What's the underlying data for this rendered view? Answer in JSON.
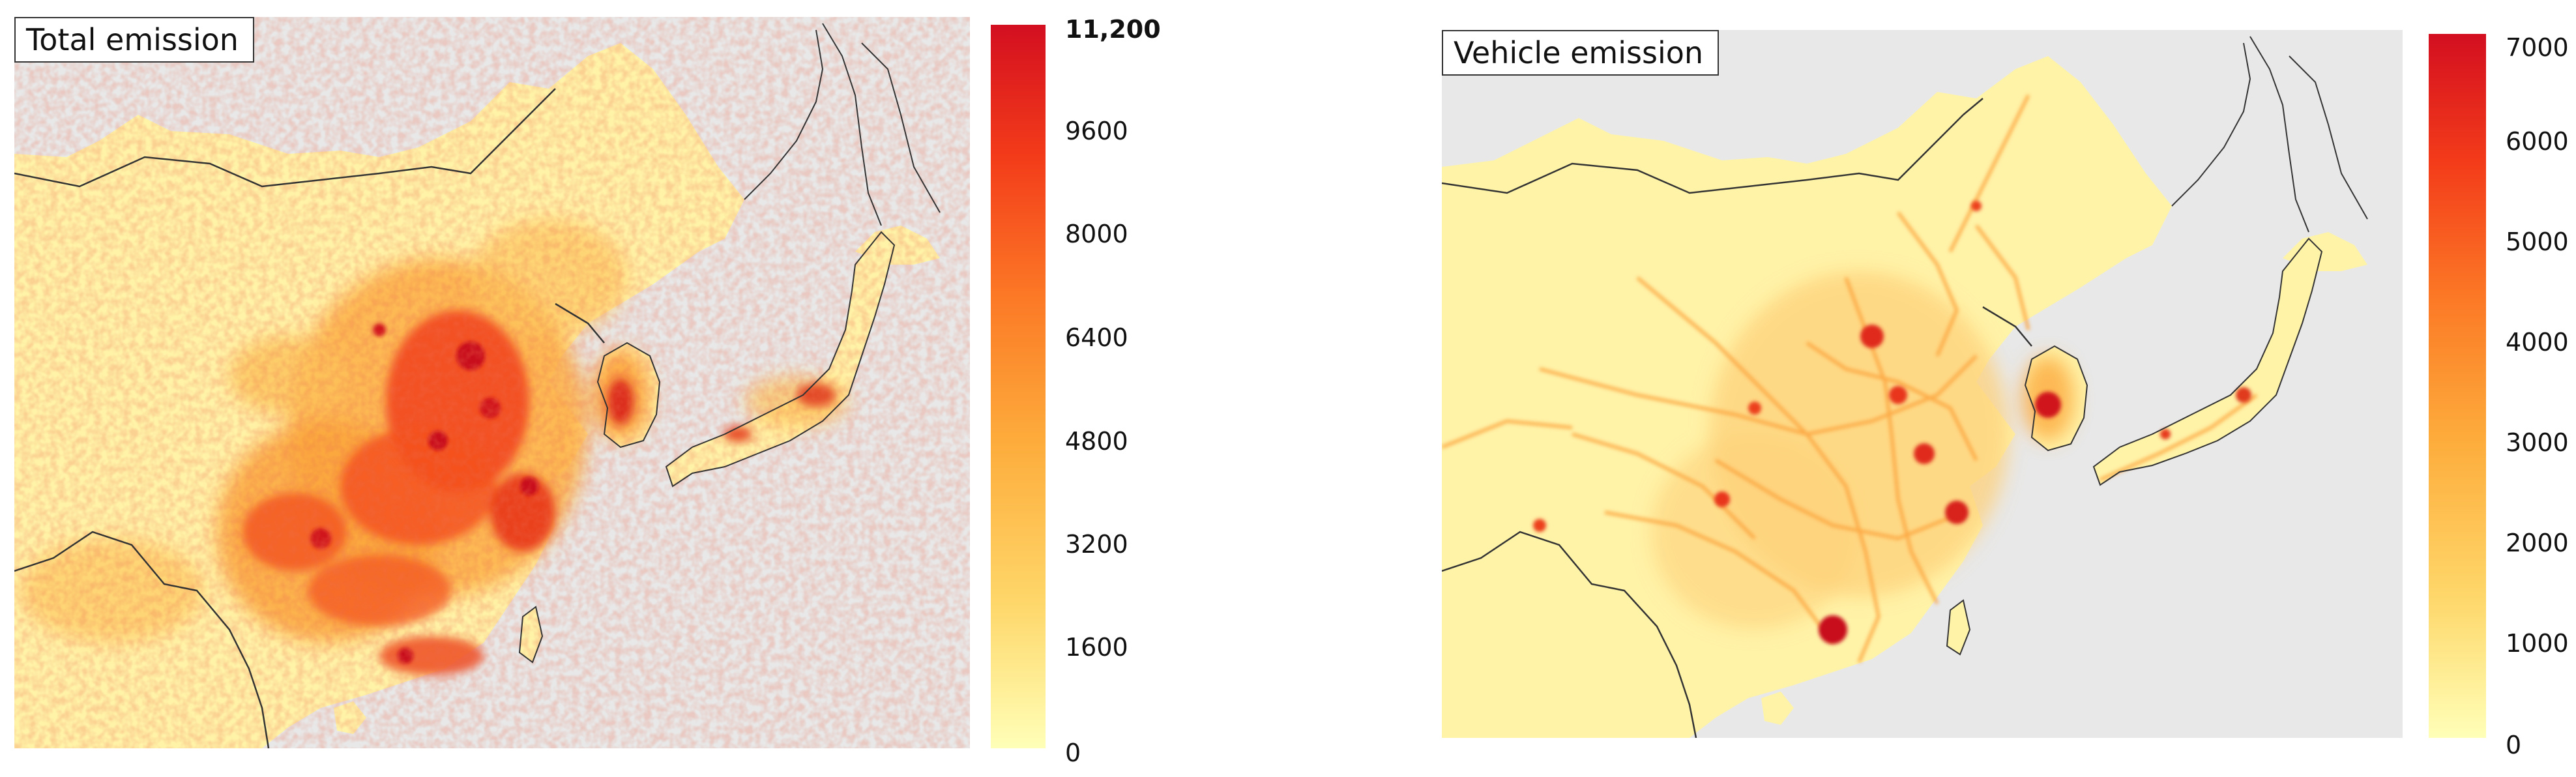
{
  "panels": [
    {
      "title": "Total emission",
      "colorbar": {
        "ticks": [
          "11,200",
          "9600",
          "8000",
          "6400",
          "4800",
          "3200",
          "1600",
          "0"
        ],
        "values": [
          11200,
          9600,
          8000,
          6400,
          4800,
          3200,
          1600,
          0
        ],
        "max": 11200,
        "colors": [
          "#ffffb8",
          "#fed76a",
          "#fdad3c",
          "#fc7a26",
          "#f33b1a",
          "#d30f20"
        ]
      }
    },
    {
      "title": "Vehicle emission",
      "colorbar": {
        "ticks": [
          "7000",
          "6000",
          "5000",
          "4000",
          "3000",
          "2000",
          "1000",
          "0"
        ],
        "values": [
          7000,
          6000,
          5000,
          4000,
          3000,
          2000,
          1000,
          0
        ],
        "max": 7000,
        "colors": [
          "#ffffb8",
          "#fed76a",
          "#fdad3c",
          "#fc7a26",
          "#f33b1a",
          "#d30f20"
        ]
      }
    }
  ],
  "map": {
    "region": "East Asia",
    "land_color": "#fff3a8",
    "sea_color": "#e8e8e8",
    "border_color": "#333333"
  }
}
